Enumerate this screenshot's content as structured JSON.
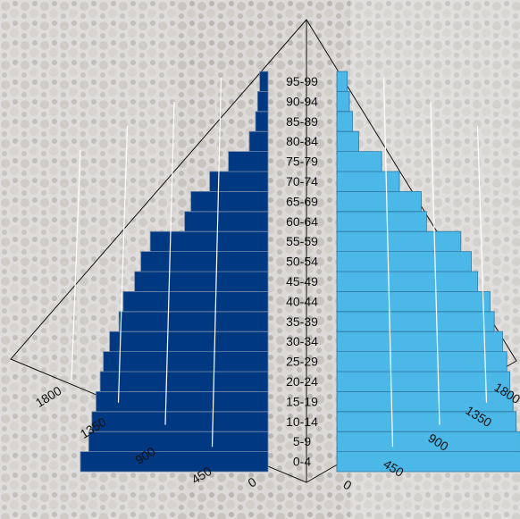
{
  "chart_data": {
    "type": "bar",
    "orientation": "horizontal-pyramid",
    "categories": [
      "0-4",
      "5-9",
      "10-14",
      "15-19",
      "20-24",
      "25-29",
      "30-34",
      "35-39",
      "40-44",
      "45-49",
      "50-54",
      "55-59",
      "60-64",
      "65-69",
      "70-74",
      "75-79",
      "80-84",
      "85-89",
      "90-94",
      "95-99"
    ],
    "series": [
      {
        "side": "left",
        "color": "#003882",
        "values": [
          1800,
          1720,
          1690,
          1650,
          1610,
          1580,
          1520,
          1430,
          1390,
          1280,
          1220,
          1130,
          800,
          740,
          560,
          380,
          180,
          120,
          100,
          80
        ]
      },
      {
        "side": "right",
        "color": "#4cb8e8",
        "values": [
          1800,
          1760,
          1720,
          1690,
          1660,
          1630,
          1590,
          1510,
          1470,
          1350,
          1290,
          1190,
          860,
          810,
          600,
          430,
          210,
          150,
          120,
          100
        ]
      }
    ],
    "left_ticks": [
      "1800",
      "1350",
      "900",
      "450",
      "0"
    ],
    "right_ticks": [
      "0",
      "450",
      "900",
      "1350",
      "1800"
    ],
    "xlim": [
      0,
      1800
    ],
    "grid": true
  }
}
